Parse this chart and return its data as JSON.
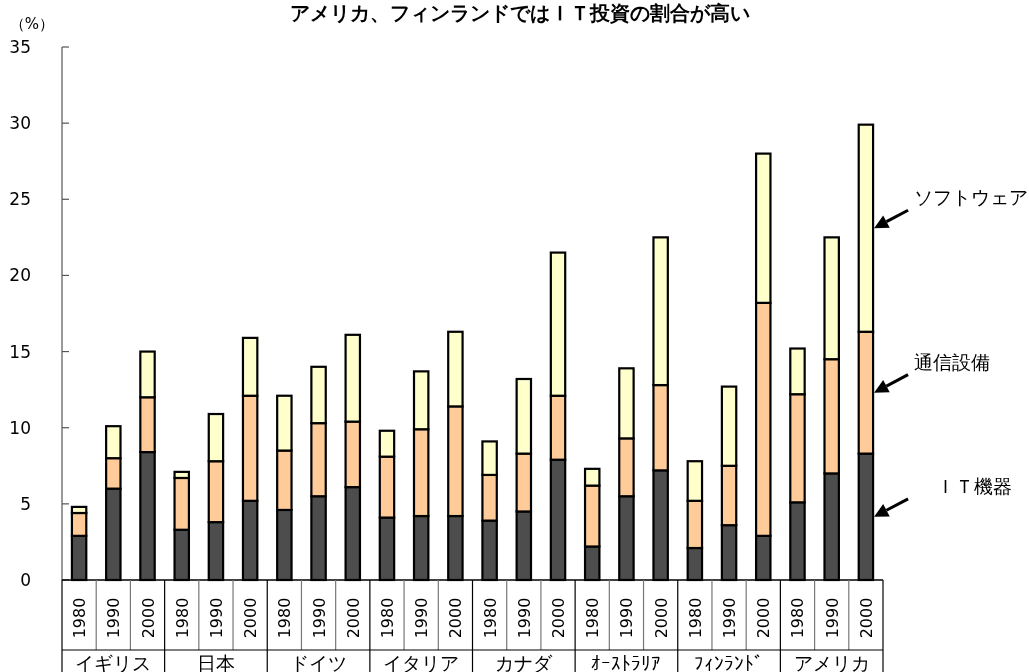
{
  "chart_data": {
    "type": "bar",
    "stacked": true,
    "title": "アメリカ、フィンランドではＩＴ投資の割合が高い",
    "ylabel": "（%）",
    "categories": [
      "1980",
      "1990",
      "2000",
      "1980",
      "1990",
      "2000",
      "1980",
      "1990",
      "2000",
      "1980",
      "1990",
      "2000",
      "1980",
      "1990",
      "2000",
      "1980",
      "1990",
      "2000",
      "1980",
      "1990",
      "2000",
      "1980",
      "1990",
      "2000"
    ],
    "annotations": [
      "イギリス",
      "日本",
      "ドイツ",
      "イタリア",
      "カナダ",
      "ｵｰｽﾄﾗﾘｱ",
      "ﾌｨﾝﾗﾝﾄﾞ",
      "アメリカ"
    ],
    "series": [
      {
        "name": "ＩＴ機器",
        "color": "#4d4d4d",
        "values": [
          2.9,
          6.0,
          8.4,
          3.3,
          3.8,
          5.2,
          4.6,
          5.5,
          6.1,
          4.1,
          4.2,
          4.2,
          3.9,
          4.5,
          7.9,
          2.2,
          5.5,
          7.2,
          2.1,
          3.6,
          2.9,
          5.1,
          7.0,
          8.3
        ]
      },
      {
        "name": "通信設備",
        "color": "#ffcc99",
        "values": [
          1.5,
          2.0,
          3.6,
          3.4,
          4.0,
          6.9,
          3.9,
          4.8,
          4.3,
          4.0,
          5.7,
          7.2,
          3.0,
          3.8,
          4.2,
          4.0,
          3.8,
          5.6,
          3.1,
          3.9,
          15.3,
          7.1,
          7.5,
          8.0
        ]
      },
      {
        "name": "ソフトウェア",
        "color": "#ffffcc",
        "values": [
          0.4,
          2.1,
          3.0,
          0.4,
          3.1,
          3.8,
          3.6,
          3.7,
          5.7,
          1.7,
          3.8,
          4.9,
          2.2,
          4.9,
          9.4,
          1.1,
          4.6,
          9.7,
          2.6,
          5.2,
          9.8,
          3.0,
          8.0,
          13.6
        ]
      }
    ],
    "ylim": [
      0,
      35
    ],
    "yticks": [
      0,
      5,
      10,
      15,
      20,
      25,
      30,
      35
    ],
    "legend": "right"
  }
}
